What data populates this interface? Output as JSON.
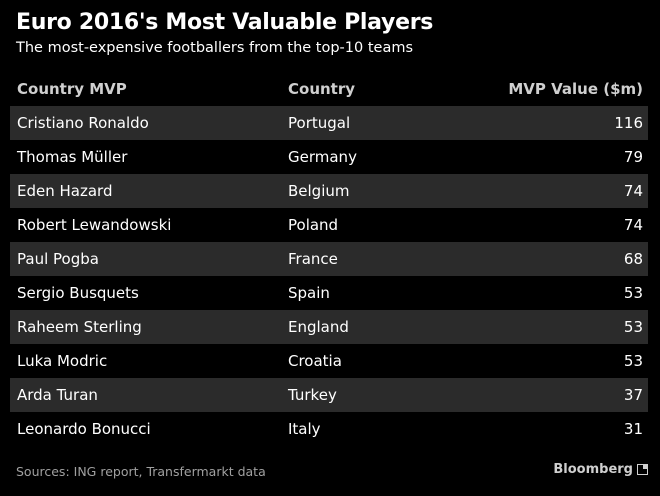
{
  "title": "Euro 2016's Most Valuable Players",
  "subtitle": "The most-expensive footballers from the top-10 teams",
  "chart_data": {
    "type": "table",
    "title": "Euro 2016's Most Valuable Players",
    "subtitle": "The most-expensive footballers from the top-10 teams",
    "columns": [
      "Country MVP",
      "Country",
      "MVP Value ($m)"
    ],
    "rows": [
      [
        "Cristiano Ronaldo",
        "Portugal",
        "116"
      ],
      [
        "Thomas Müller",
        "Germany",
        "79"
      ],
      [
        "Eden Hazard",
        "Belgium",
        "74"
      ],
      [
        "Robert Lewandowski",
        "Poland",
        "74"
      ],
      [
        "Paul Pogba",
        "France",
        "68"
      ],
      [
        "Sergio Busquets",
        "Spain",
        "53"
      ],
      [
        "Raheem Sterling",
        "England",
        "53"
      ],
      [
        "Luka Modric",
        "Croatia",
        "53"
      ],
      [
        "Arda Turan",
        "Turkey",
        "37"
      ],
      [
        "Leonardo Bonucci",
        "Italy",
        "31"
      ]
    ]
  },
  "source": "Sources: ING report, Transfermarkt data",
  "brand": "Bloomberg",
  "colors": {
    "background": "#000000",
    "row_shade": "#2b2b2b",
    "header_text": "#cfcfcf",
    "text": "#ffffff",
    "source_text": "#a0a0a0"
  }
}
